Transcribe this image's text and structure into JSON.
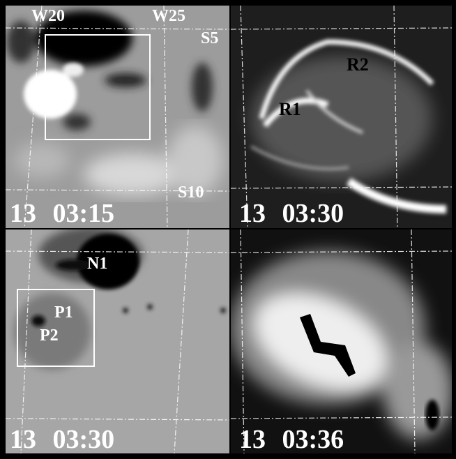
{
  "panels": [
    {
      "time": "13 03:15",
      "labels": [
        "W20",
        "W25",
        "S5",
        "S10"
      ]
    },
    {
      "time": "13 03:30",
      "labels": [
        "R1",
        "R2"
      ]
    },
    {
      "time": "13 03:30",
      "labels": [
        "N1",
        "P1",
        "P2"
      ]
    },
    {
      "time": "13 03:36"
    }
  ]
}
